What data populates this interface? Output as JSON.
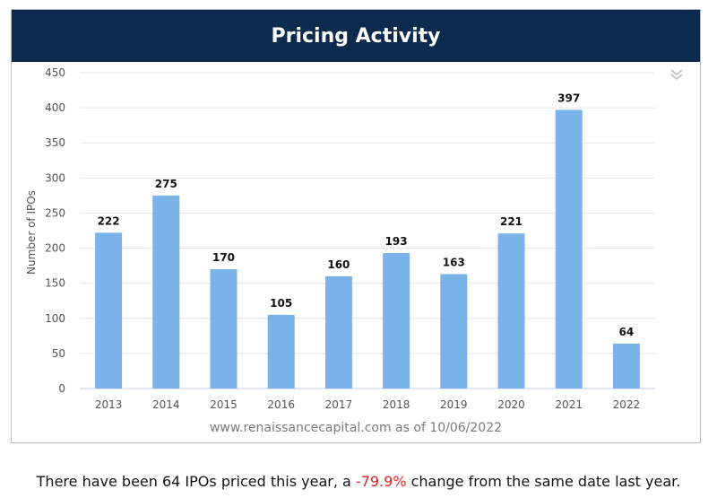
{
  "header": {
    "title": "Pricing Activity"
  },
  "colors": {
    "header_bg": "#0c2a4d",
    "bar": "#7ab3ea",
    "negative": "#e32222"
  },
  "icons": {
    "collapse": "double-chevron-down-icon"
  },
  "chart_data": {
    "type": "bar",
    "title": "Pricing Activity",
    "xlabel": "",
    "ylabel": "Number of IPOs",
    "categories": [
      "2013",
      "2014",
      "2015",
      "2016",
      "2017",
      "2018",
      "2019",
      "2020",
      "2021",
      "2022"
    ],
    "values": [
      222,
      275,
      170,
      105,
      160,
      193,
      163,
      221,
      397,
      64
    ],
    "ylim": [
      0,
      450
    ],
    "yticks": [
      0,
      50,
      100,
      150,
      200,
      250,
      300,
      350,
      400,
      450
    ],
    "grid": true,
    "data_labels": true
  },
  "source": {
    "text": "www.renaissancecapital.com as of 10/06/2022"
  },
  "footer": {
    "prefix": "There have been 64 IPOs priced this year, a ",
    "change": "-79.9%",
    "suffix": " change from the same date last year."
  }
}
